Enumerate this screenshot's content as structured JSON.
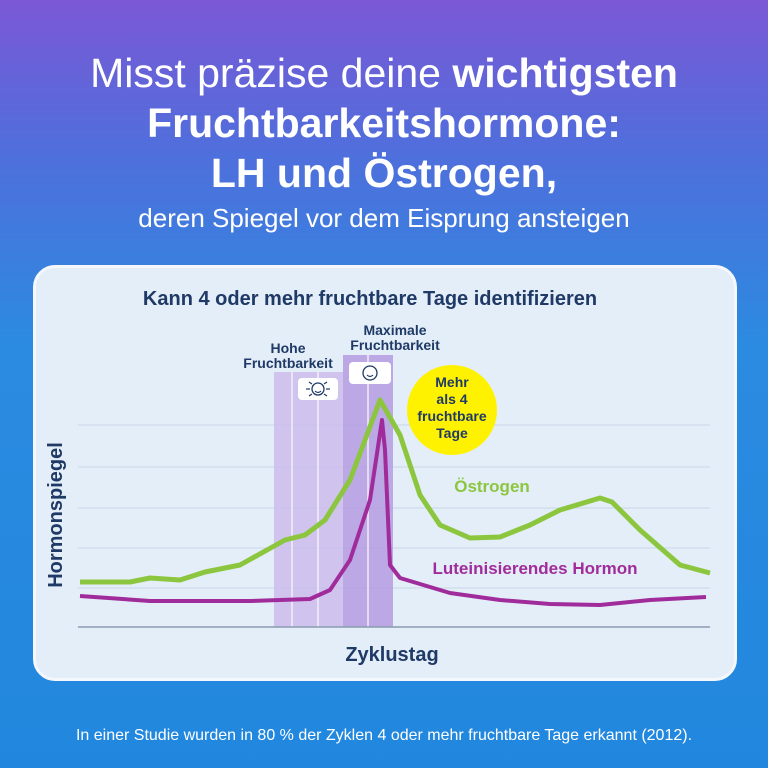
{
  "title": {
    "line1_regular": "Misst präzise deine ",
    "line1_bold": "wichtigsten",
    "line2": "Fruchtbarkeitshormone:",
    "line3": "LH und Östrogen,",
    "line4": "deren Spiegel vor dem Eisprung ansteigen"
  },
  "diagram": {
    "heading": "Kann 4 oder mehr fruchtbare Tage identifizieren",
    "high_label_1": "Hohe",
    "high_label_2": "Fruchtbarkeit",
    "max_label_1": "Maximale",
    "max_label_2": "Fruchtbarkeit",
    "high_icon": "radiant-smiley-icon",
    "max_icon": "smiley-icon",
    "badge": [
      "Mehr",
      "als 4",
      "fruchtbare",
      "Tage"
    ],
    "ylabel": "Hormonspiegel",
    "xlabel": "Zyklustag",
    "series": [
      {
        "name": "Östrogen",
        "color": "#8cc63f"
      },
      {
        "name": "Luteinisierendes Hormon",
        "color": "#a02c9b"
      }
    ],
    "badge_color": "#fff200"
  },
  "footer": "In einer Studie wurden in 80 % der Zyklen 4 oder mehr fruchtbare Tage erkannt (2012)."
}
